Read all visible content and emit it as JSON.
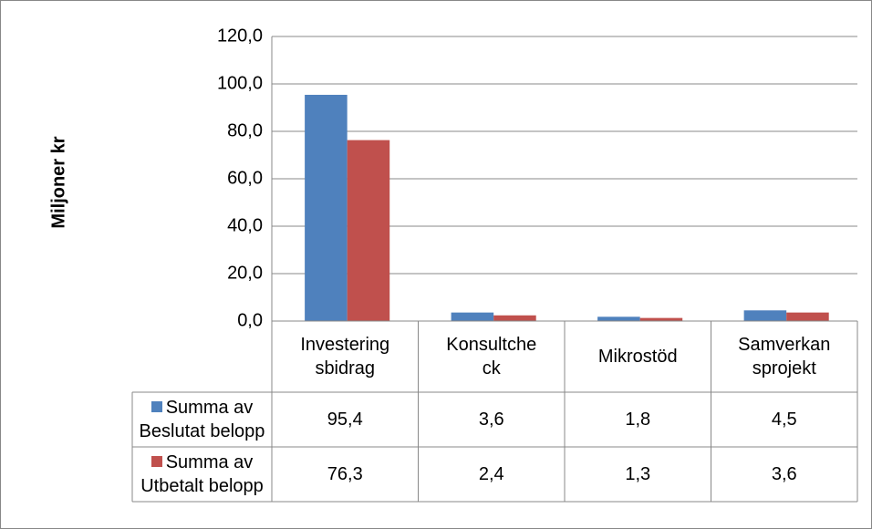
{
  "chart_data": {
    "type": "bar",
    "y_axis_label": "Miljoner kr",
    "categories": [
      "Investering\nsbidrag",
      "Konsultche\nck",
      "Mikrostöd",
      "Samverkan\nsprojekt"
    ],
    "series": [
      {
        "name": "Summa av Beslutat belopp",
        "color": "#4f81bd",
        "values": [
          95.4,
          3.6,
          1.8,
          4.5
        ],
        "value_labels": [
          "95,4",
          "3,6",
          "1,8",
          "4,5"
        ]
      },
      {
        "name": "Summa av Utbetalt belopp",
        "color": "#c0504d",
        "values": [
          76.3,
          2.4,
          1.3,
          3.6
        ],
        "value_labels": [
          "76,3",
          "2,4",
          "1,3",
          "3,6"
        ]
      }
    ],
    "ylim": [
      0,
      120
    ],
    "yticks": [
      {
        "value": 0,
        "label": "0,0"
      },
      {
        "value": 20,
        "label": "20,0"
      },
      {
        "value": 40,
        "label": "40,0"
      },
      {
        "value": 60,
        "label": "60,0"
      },
      {
        "value": 80,
        "label": "80,0"
      },
      {
        "value": 100,
        "label": "100,0"
      },
      {
        "value": 120,
        "label": "120,0"
      }
    ],
    "grid": true
  }
}
